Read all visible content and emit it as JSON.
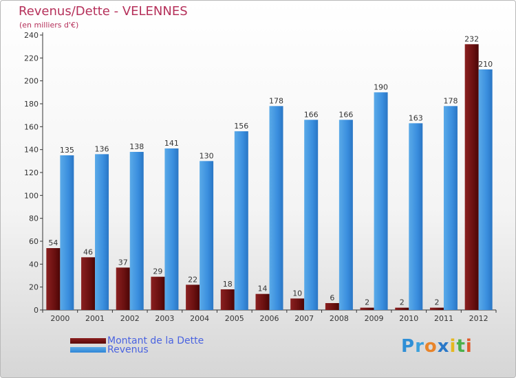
{
  "header": {
    "title": "Revenus/Dette - VELENNES",
    "subtitle": "(en milliers d'€)"
  },
  "chart_data": {
    "type": "bar",
    "title": "Revenus/Dette - VELENNES",
    "ylabel": "(en milliers d'€)",
    "xlabel": "",
    "categories": [
      "2000",
      "2001",
      "2002",
      "2003",
      "2004",
      "2005",
      "2006",
      "2007",
      "2008",
      "2009",
      "2010",
      "2011",
      "2012"
    ],
    "series": [
      {
        "name": "Montant de la Dette",
        "color": "#7a1818",
        "values": [
          54,
          46,
          37,
          29,
          22,
          18,
          14,
          10,
          6,
          2,
          2,
          2,
          232
        ]
      },
      {
        "name": "Revenus",
        "color": "#3d93e0",
        "values": [
          135,
          136,
          138,
          141,
          130,
          156,
          178,
          166,
          166,
          190,
          163,
          178,
          210
        ]
      }
    ],
    "ylim": [
      0,
      240
    ],
    "yticks": [
      0,
      20,
      40,
      60,
      80,
      100,
      120,
      140,
      160,
      180,
      200,
      220,
      240
    ],
    "grid": false,
    "legend_position": "bottom-left"
  },
  "legend": {
    "items": [
      {
        "label": "Montant de la Dette",
        "color": "#7a1818"
      },
      {
        "label": "Revenus",
        "color": "#3d93e0"
      }
    ]
  },
  "logo": {
    "text": "Proxiti",
    "letters": [
      "P",
      "r",
      "o",
      "x",
      "i",
      "t",
      "i"
    ],
    "letter_colors": [
      "#2f8fd6",
      "#3aa0dc",
      "#e8842a",
      "#2a78c8",
      "#e6b820",
      "#4bb04a",
      "#e05a2a"
    ]
  }
}
